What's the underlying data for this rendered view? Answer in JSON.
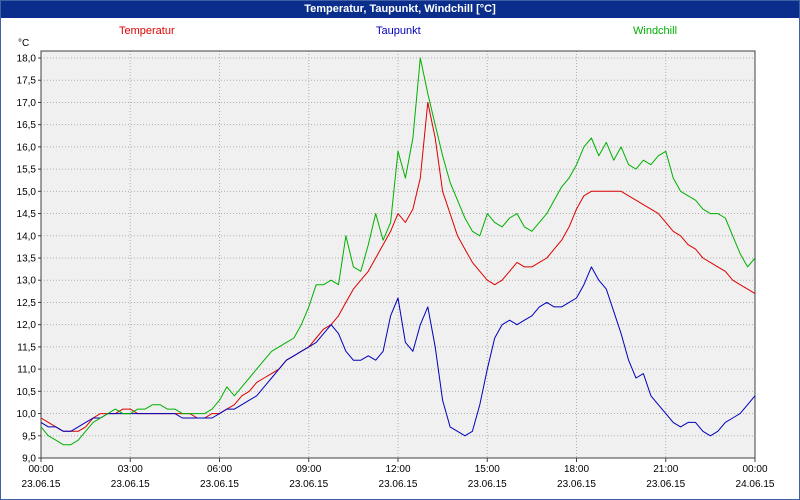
{
  "title_bar": {
    "text": "Temperatur, Taupunkt, Windchill [°C]"
  },
  "colors": {
    "title_bar_bg": "#0b2e8c",
    "frame_border": "#3f5fa7",
    "plot_bg": "#f0f0f0",
    "grid": "#b0b0b0",
    "axis": "#404040"
  },
  "chart_data": {
    "type": "line",
    "title": "Temperatur, Taupunkt, Windchill [°C]",
    "ylabel": "°C",
    "xlabel": "",
    "ylim": [
      9.0,
      18.0
    ],
    "ytick_step": 0.5,
    "xlim": [
      0,
      24
    ],
    "grid": true,
    "legend_position": "top",
    "xticks": [
      0,
      3,
      6,
      9,
      12,
      15,
      18,
      21,
      24
    ],
    "xtick_labels": [
      "00:00",
      "03:00",
      "06:00",
      "09:00",
      "12:00",
      "15:00",
      "18:00",
      "21:00",
      "00:00"
    ],
    "xtick_dates": [
      "23.06.15",
      "23.06.15",
      "23.06.15",
      "23.06.15",
      "23.06.15",
      "23.06.15",
      "23.06.15",
      "23.06.15",
      "24.06.15"
    ],
    "x": [
      0,
      0.25,
      0.5,
      0.75,
      1,
      1.25,
      1.5,
      1.75,
      2,
      2.25,
      2.5,
      2.75,
      3,
      3.25,
      3.5,
      3.75,
      4,
      4.25,
      4.5,
      4.75,
      5,
      5.25,
      5.5,
      5.75,
      6,
      6.25,
      6.5,
      6.75,
      7,
      7.25,
      7.5,
      7.75,
      8,
      8.25,
      8.5,
      8.75,
      9,
      9.25,
      9.5,
      9.75,
      10,
      10.25,
      10.5,
      10.75,
      11,
      11.25,
      11.5,
      11.75,
      12,
      12.25,
      12.5,
      12.75,
      13,
      13.25,
      13.5,
      13.75,
      14,
      14.25,
      14.5,
      14.75,
      15,
      15.25,
      15.5,
      15.75,
      16,
      16.25,
      16.5,
      16.75,
      17,
      17.25,
      17.5,
      17.75,
      18,
      18.25,
      18.5,
      18.75,
      19,
      19.25,
      19.5,
      19.75,
      20,
      20.25,
      20.5,
      20.75,
      21,
      21.25,
      21.5,
      21.75,
      22,
      22.25,
      22.5,
      22.75,
      23,
      23.25,
      23.5,
      23.75,
      24
    ],
    "series": [
      {
        "name": "Temperatur",
        "color": "#dd0000",
        "values": [
          9.9,
          9.8,
          9.7,
          9.6,
          9.6,
          9.6,
          9.7,
          9.9,
          10,
          10,
          10,
          10.1,
          10.1,
          10,
          10,
          10,
          10,
          10,
          10,
          10,
          10,
          9.9,
          9.9,
          10,
          10,
          10.1,
          10.2,
          10.4,
          10.5,
          10.7,
          10.8,
          10.9,
          11,
          11.2,
          11.3,
          11.4,
          11.5,
          11.7,
          11.9,
          12,
          12.2,
          12.5,
          12.8,
          13,
          13.2,
          13.5,
          13.8,
          14.1,
          14.5,
          14.3,
          14.6,
          15.3,
          17,
          16.2,
          15,
          14.5,
          14,
          13.7,
          13.4,
          13.2,
          13,
          12.9,
          13,
          13.2,
          13.4,
          13.3,
          13.3,
          13.4,
          13.5,
          13.7,
          13.9,
          14.2,
          14.6,
          14.9,
          15,
          15,
          15,
          15,
          15,
          14.9,
          14.8,
          14.7,
          14.6,
          14.5,
          14.3,
          14.1,
          14,
          13.8,
          13.7,
          13.5,
          13.4,
          13.3,
          13.2,
          13,
          12.9,
          12.8,
          12.7
        ]
      },
      {
        "name": "Taupunkt",
        "color": "#0000bb",
        "values": [
          9.8,
          9.7,
          9.7,
          9.6,
          9.6,
          9.7,
          9.8,
          9.9,
          9.9,
          10,
          10,
          10,
          10,
          10,
          10,
          10,
          10,
          10,
          10,
          9.9,
          9.9,
          9.9,
          9.9,
          9.9,
          10,
          10.1,
          10.1,
          10.2,
          10.3,
          10.4,
          10.6,
          10.8,
          11,
          11.2,
          11.3,
          11.4,
          11.5,
          11.6,
          11.8,
          12,
          11.8,
          11.4,
          11.2,
          11.2,
          11.3,
          11.2,
          11.4,
          12.2,
          12.6,
          11.6,
          11.4,
          12,
          12.4,
          11.5,
          10.3,
          9.7,
          9.6,
          9.5,
          9.6,
          10.2,
          11,
          11.7,
          12,
          12.1,
          12,
          12.1,
          12.2,
          12.4,
          12.5,
          12.4,
          12.4,
          12.5,
          12.6,
          12.9,
          13.3,
          13,
          12.8,
          12.3,
          11.8,
          11.2,
          10.8,
          10.9,
          10.4,
          10.2,
          10,
          9.8,
          9.7,
          9.8,
          9.8,
          9.6,
          9.5,
          9.6,
          9.8,
          9.9,
          10,
          10.2,
          10.4
        ]
      },
      {
        "name": "Windchill",
        "color": "#00b000",
        "values": [
          9.7,
          9.5,
          9.4,
          9.3,
          9.3,
          9.4,
          9.6,
          9.8,
          9.9,
          10,
          10.1,
          10,
          10,
          10.1,
          10.1,
          10.2,
          10.2,
          10.1,
          10.1,
          10,
          10,
          10,
          10,
          10.1,
          10.3,
          10.6,
          10.4,
          10.6,
          10.8,
          11,
          11.2,
          11.4,
          11.5,
          11.6,
          11.7,
          12,
          12.4,
          12.9,
          12.9,
          13,
          12.9,
          14,
          13.3,
          13.2,
          13.8,
          14.5,
          13.9,
          14.3,
          15.9,
          15.3,
          16.2,
          18,
          17.2,
          16.5,
          15.8,
          15.2,
          14.8,
          14.4,
          14.1,
          14,
          14.5,
          14.3,
          14.2,
          14.4,
          14.5,
          14.2,
          14.1,
          14.3,
          14.5,
          14.8,
          15.1,
          15.3,
          15.6,
          16,
          16.2,
          15.8,
          16.1,
          15.7,
          16,
          15.6,
          15.5,
          15.7,
          15.6,
          15.8,
          15.9,
          15.3,
          15,
          14.9,
          14.8,
          14.6,
          14.5,
          14.5,
          14.4,
          14,
          13.6,
          13.3,
          13.5
        ]
      }
    ]
  }
}
